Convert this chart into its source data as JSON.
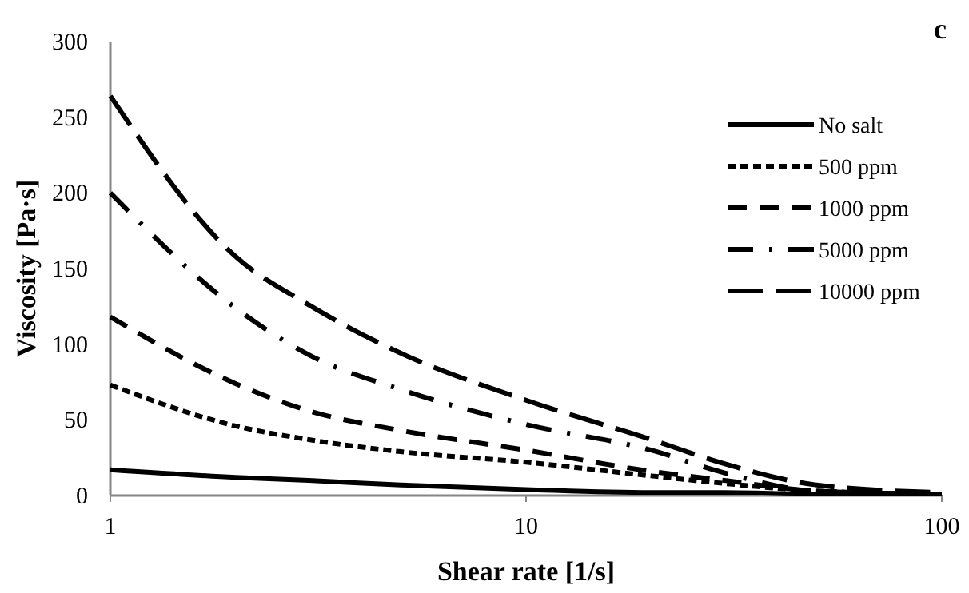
{
  "chart_data": {
    "type": "line",
    "xlabel": "Shear rate [1/s]",
    "ylabel": "Viscosity [Pa·s]",
    "annotations": [
      "c"
    ],
    "log": "x",
    "xlim": [
      1,
      100
    ],
    "xticks": [
      1,
      10,
      100
    ],
    "ylim": [
      0,
      300
    ],
    "yticks": [
      0,
      50,
      100,
      150,
      200,
      250,
      300
    ],
    "grid": false,
    "legend": "top right",
    "marker": "none",
    "x": [
      1,
      2,
      3,
      5,
      10,
      20,
      30,
      50,
      100
    ],
    "series": [
      {
        "name": "No salt",
        "color": "#000000",
        "line_style": "solid",
        "values": [
          17,
          12,
          10,
          7,
          4,
          2,
          2,
          1,
          1
        ]
      },
      {
        "name": "500 ppm",
        "color": "#000000",
        "line_style": "dotted",
        "values": [
          73,
          46,
          37,
          29,
          22,
          13,
          8,
          3,
          1
        ]
      },
      {
        "name": "1000 ppm",
        "color": "#000000",
        "line_style": "dashed",
        "values": [
          118,
          74,
          56,
          43,
          30,
          16,
          10,
          3,
          1
        ]
      },
      {
        "name": "5000 ppm",
        "color": "#000000",
        "line_style": "dashdot",
        "values": [
          200,
          124,
          93,
          70,
          47,
          30,
          15,
          3,
          1
        ]
      },
      {
        "name": "10000 ppm",
        "color": "#000000",
        "line_style": "longdash",
        "values": [
          264,
          158,
          126,
          94,
          63,
          37,
          21,
          7,
          2
        ]
      }
    ]
  }
}
